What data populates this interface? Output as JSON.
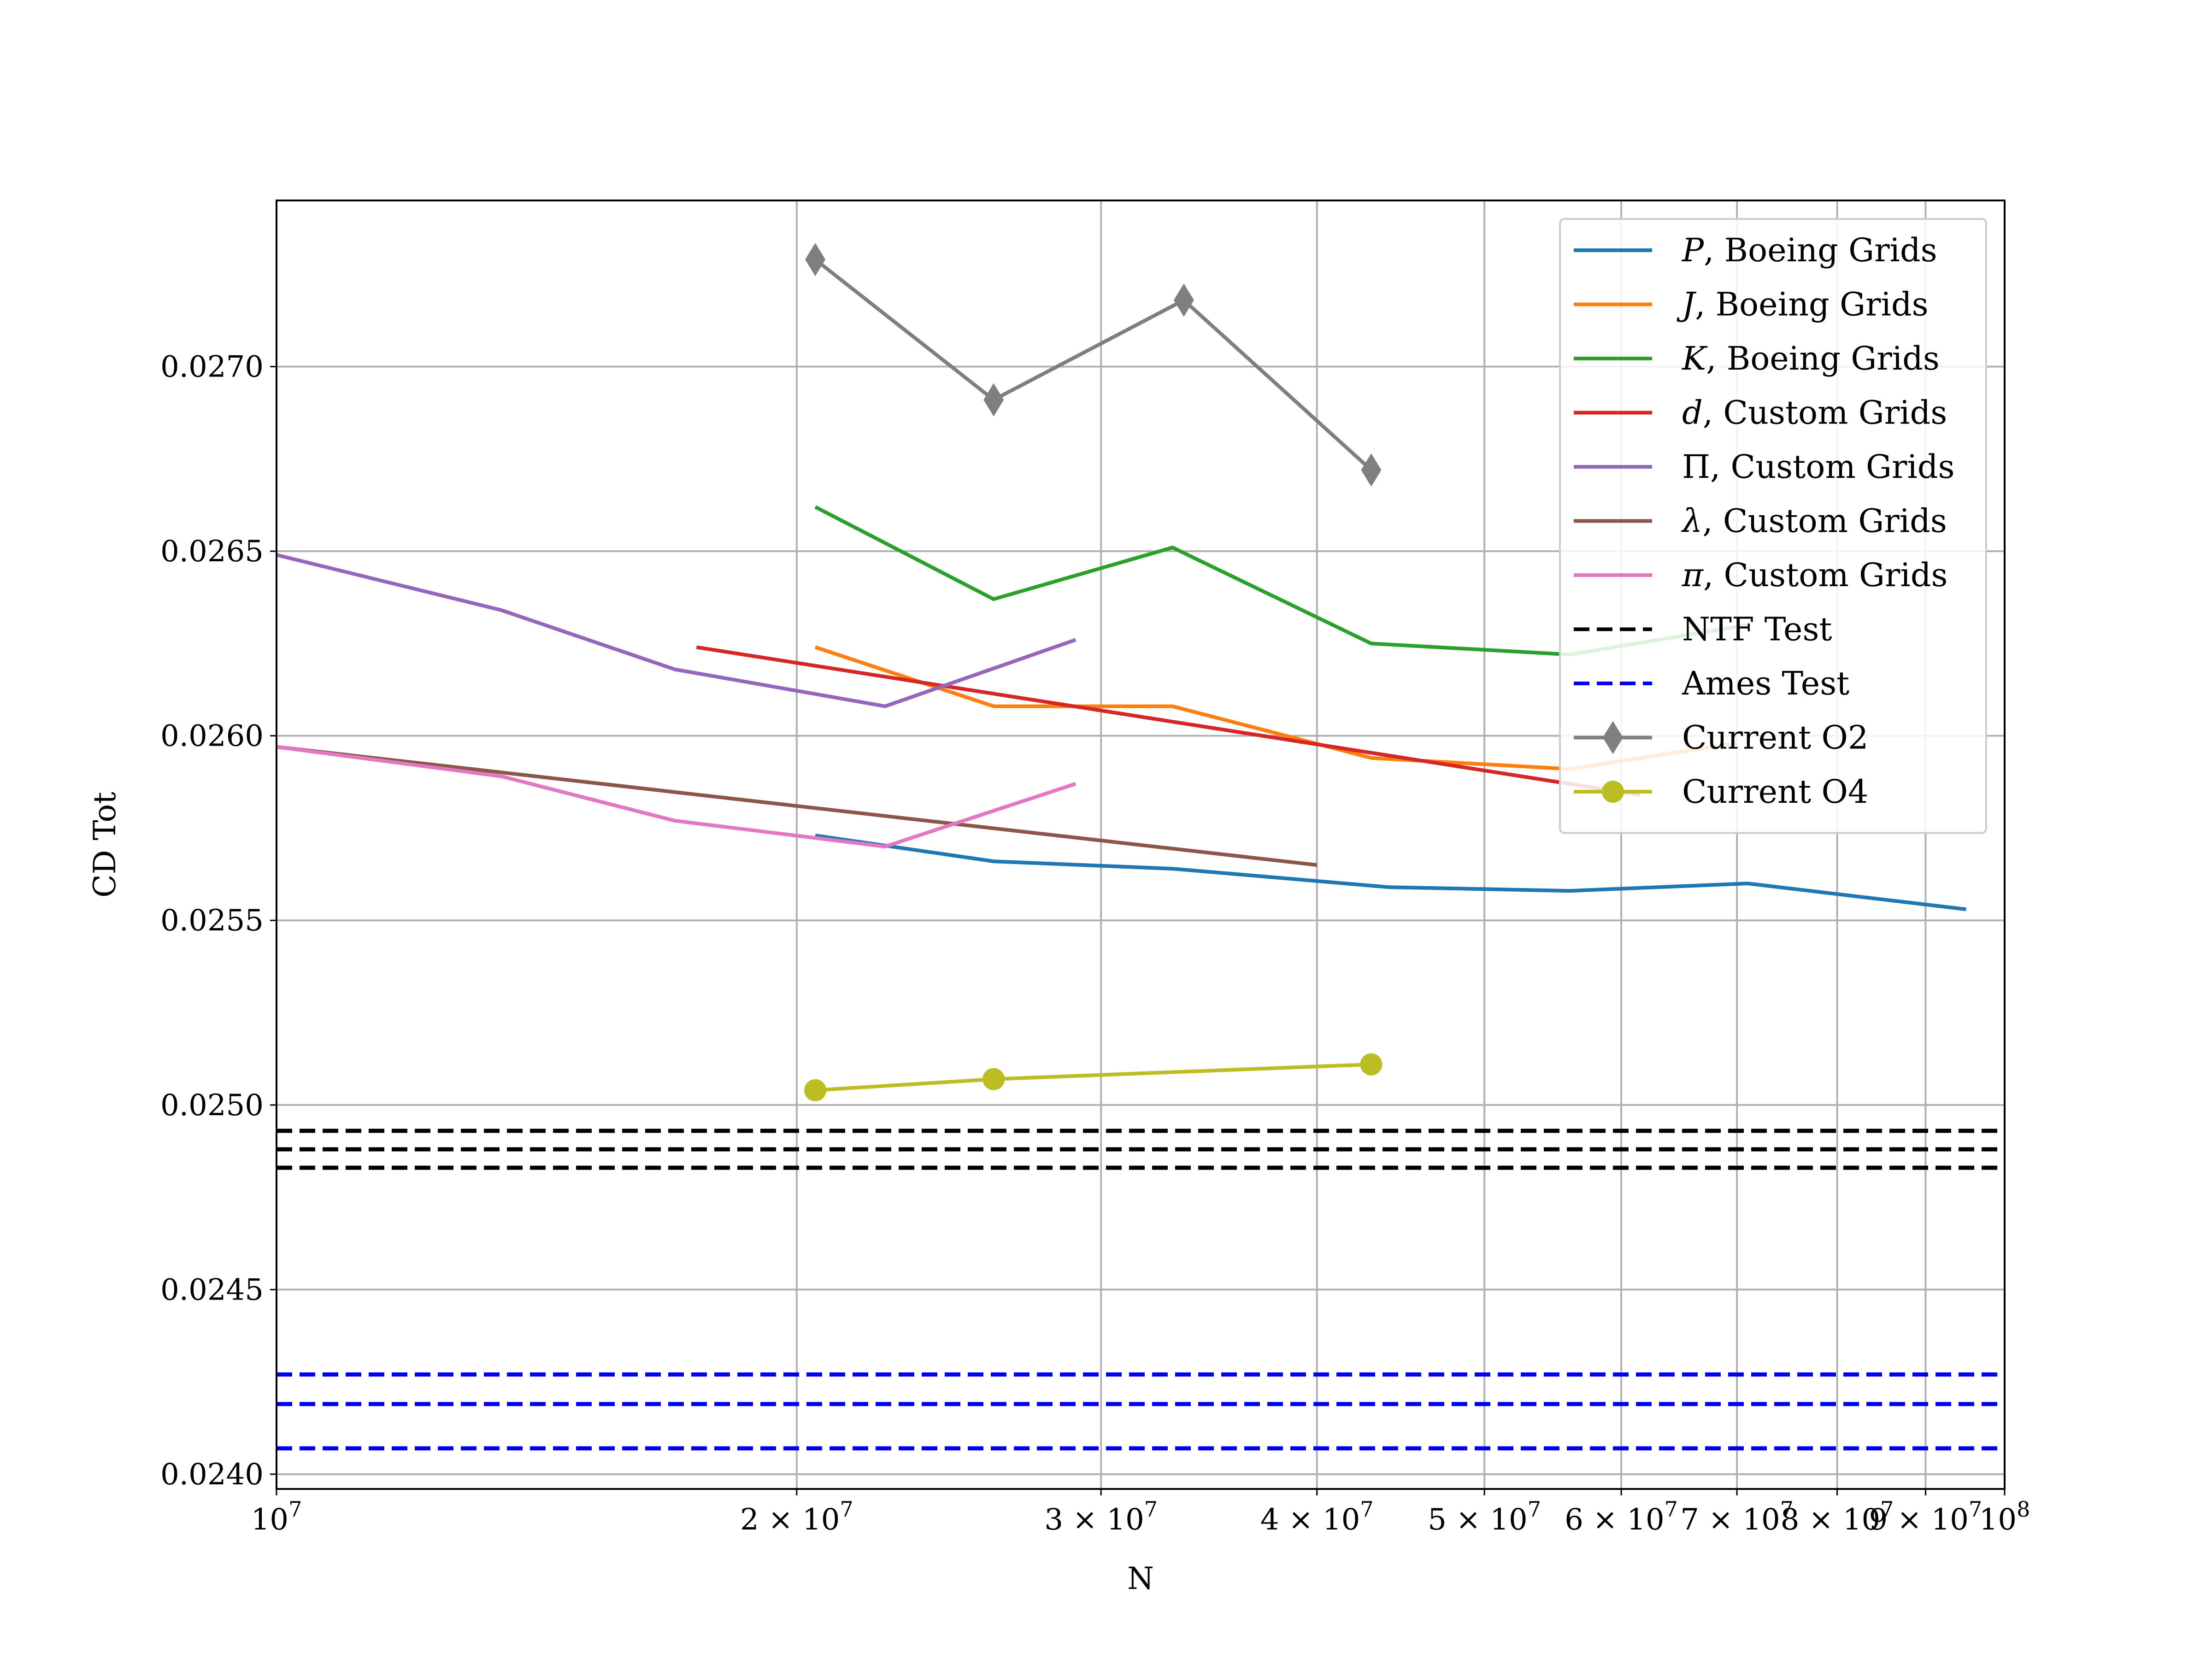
{
  "chart_data": {
    "type": "line",
    "title": "",
    "xlabel": "N",
    "ylabel": "CD Tot",
    "xscale": "log",
    "xlim": [
      10000000,
      100000000
    ],
    "ylim": [
      0.02396,
      0.02745
    ],
    "grid": true,
    "legend_position": "top-right",
    "x_ticks": [
      {
        "value": 10000000,
        "base": "10",
        "exp": "7"
      },
      {
        "value": 20000000,
        "mant": "2",
        "base": "10",
        "exp": "7"
      },
      {
        "value": 30000000,
        "mant": "3",
        "base": "10",
        "exp": "7"
      },
      {
        "value": 40000000,
        "mant": "4",
        "base": "10",
        "exp": "7"
      },
      {
        "value": 50000000,
        "mant": "5",
        "base": "10",
        "exp": "7"
      },
      {
        "value": 60000000,
        "mant": "6",
        "base": "10",
        "exp": "7"
      },
      {
        "value": 70000000,
        "mant": "7",
        "base": "10",
        "exp": "7"
      },
      {
        "value": 80000000,
        "mant": "8",
        "base": "10",
        "exp": "7"
      },
      {
        "value": 90000000,
        "mant": "9",
        "base": "10",
        "exp": "7"
      },
      {
        "value": 100000000,
        "base": "10",
        "exp": "8"
      }
    ],
    "y_ticks": [
      {
        "value": 0.024,
        "label": "0.0240"
      },
      {
        "value": 0.0245,
        "label": "0.0245"
      },
      {
        "value": 0.025,
        "label": "0.0250"
      },
      {
        "value": 0.0255,
        "label": "0.0255"
      },
      {
        "value": 0.026,
        "label": "0.0260"
      },
      {
        "value": 0.0265,
        "label": "0.0265"
      },
      {
        "value": 0.027,
        "label": "0.0270"
      }
    ],
    "series": [
      {
        "name": "P",
        "suffix": ", Boeing Grids",
        "italic": true,
        "color": "#1f77b4",
        "marker": "none",
        "style": "solid",
        "x": [
          20500000,
          26000000,
          33000000,
          44000000,
          56000000,
          71000000,
          95000000
        ],
        "y": [
          0.02573,
          0.02566,
          0.02564,
          0.02559,
          0.02558,
          0.0256,
          0.02553
        ]
      },
      {
        "name": "J",
        "suffix": ", Boeing Grids",
        "italic": true,
        "color": "#ff7f0e",
        "marker": "none",
        "style": "solid",
        "x": [
          20500000,
          26000000,
          33000000,
          43000000,
          56000000,
          70000000
        ],
        "y": [
          0.02624,
          0.02608,
          0.02608,
          0.02594,
          0.02591,
          0.02598
        ]
      },
      {
        "name": "K",
        "suffix": ", Boeing Grids",
        "italic": true,
        "color": "#2ca02c",
        "marker": "none",
        "style": "solid",
        "x": [
          20500000,
          26000000,
          33000000,
          43000000,
          56000000,
          71000000
        ],
        "y": [
          0.02662,
          0.02637,
          0.02651,
          0.02625,
          0.02622,
          0.0263
        ]
      },
      {
        "name": "d",
        "suffix": ", Custom Grids",
        "italic": true,
        "color": "#d62728",
        "marker": "none",
        "style": "solid",
        "x": [
          17500000,
          61500000
        ],
        "y": [
          0.02624,
          0.02584
        ]
      },
      {
        "name": "Π",
        "suffix": ", Custom Grids",
        "italic": false,
        "color": "#9467bd",
        "marker": "none",
        "style": "solid",
        "x": [
          10000000,
          13500000,
          17000000,
          22500000,
          29000000
        ],
        "y": [
          0.02649,
          0.02634,
          0.02618,
          0.02608,
          0.02626
        ]
      },
      {
        "name": "λ",
        "suffix": ", Custom Grids",
        "italic": true,
        "color": "#8c564b",
        "marker": "none",
        "style": "solid",
        "x": [
          10000000,
          40000000
        ],
        "y": [
          0.02597,
          0.02565
        ]
      },
      {
        "name": "π",
        "suffix": ", Custom Grids",
        "italic": true,
        "color": "#e377c2",
        "marker": "none",
        "style": "solid",
        "x": [
          10000000,
          13500000,
          17000000,
          22500000,
          29000000
        ],
        "y": [
          0.02597,
          0.02589,
          0.02577,
          0.0257,
          0.02587
        ]
      },
      {
        "name": "NTF Test",
        "suffix": "",
        "italic": false,
        "color": "#000000",
        "marker": "none",
        "style": "dashed",
        "legend_only": true,
        "x": [],
        "y": []
      },
      {
        "name": "Ames Test",
        "suffix": "",
        "italic": false,
        "color": "#0000ee",
        "marker": "none",
        "style": "dashed",
        "legend_only": true,
        "x": [],
        "y": []
      },
      {
        "name": "Current O2",
        "suffix": "",
        "italic": false,
        "color": "#7f7f7f",
        "marker": "diamond",
        "style": "solid",
        "x": [
          20500000,
          26000000,
          33500000,
          43000000
        ],
        "y": [
          0.02729,
          0.02691,
          0.02718,
          0.02672
        ]
      },
      {
        "name": "Current O4",
        "suffix": "",
        "italic": false,
        "color": "#bcbd22",
        "marker": "circle",
        "style": "solid",
        "x": [
          20500000,
          26000000,
          43000000
        ],
        "y": [
          0.02504,
          0.02507,
          0.02511
        ]
      }
    ],
    "reference_lines": [
      {
        "group": "NTF Test",
        "color": "#000000",
        "y": [
          0.02493,
          0.02488,
          0.02483
        ]
      },
      {
        "group": "Ames Test",
        "color": "#0000ee",
        "y": [
          0.02427,
          0.02419,
          0.02407
        ]
      }
    ]
  }
}
